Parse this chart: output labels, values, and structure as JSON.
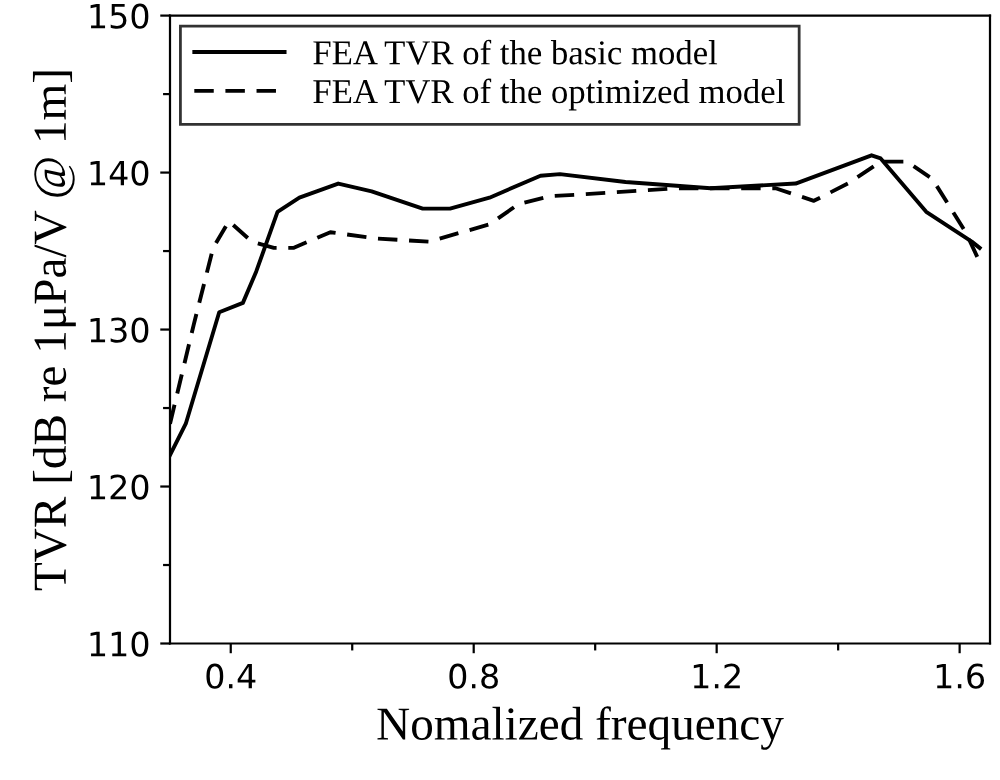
{
  "chart_data": {
    "type": "line",
    "xlabel": "Nomalized frequency",
    "ylabel": "TVR [dB re 1μPa/V @ 1m]",
    "xlim": [
      0.3,
      1.65
    ],
    "ylim": [
      110,
      150
    ],
    "xticks": [
      0.4,
      {
        "value": 0.6,
        "label": null
      },
      0.8,
      {
        "value": 1.0,
        "label": null
      },
      1.2,
      {
        "value": 1.4,
        "label": null
      },
      1.6
    ],
    "yticks": [
      110,
      {
        "value": 115,
        "label": null
      },
      120,
      {
        "value": 125,
        "label": null
      },
      130,
      {
        "value": 135,
        "label": null
      },
      140,
      {
        "value": 145,
        "label": null
      },
      150
    ],
    "legend": "top left",
    "grid": false,
    "series": [
      {
        "name": "FEA TVR of the basic model",
        "color": "#000000",
        "line_style": "solid",
        "x": [
          0.3,
          0.326,
          0.381,
          0.42,
          0.442,
          0.477,
          0.513,
          0.577,
          0.632,
          0.716,
          0.761,
          0.826,
          0.91,
          0.942,
          1.05,
          1.19,
          1.33,
          1.455,
          1.47,
          1.545,
          1.62,
          1.633
        ],
        "values": [
          122.0,
          124.0,
          131.1,
          131.7,
          133.7,
          137.5,
          138.4,
          139.3,
          138.8,
          137.7,
          137.7,
          138.4,
          139.8,
          139.9,
          139.4,
          139.0,
          139.3,
          141.1,
          140.9,
          137.5,
          135.6,
          135.2
        ]
      },
      {
        "name": "FEA TVR of the optimized model",
        "color": "#000000",
        "line_style": "dashed",
        "x": [
          0.3,
          0.339,
          0.371,
          0.397,
          0.435,
          0.471,
          0.503,
          0.564,
          0.639,
          0.726,
          0.826,
          0.874,
          0.926,
          0.974,
          1.135,
          1.297,
          1.36,
          1.416,
          1.47,
          1.513,
          1.555,
          1.61,
          1.633
        ],
        "values": [
          124.0,
          130.3,
          135.2,
          136.9,
          135.6,
          135.2,
          135.2,
          136.2,
          135.8,
          135.6,
          136.7,
          138.0,
          138.5,
          138.6,
          139.0,
          139.0,
          138.2,
          139.3,
          140.7,
          140.7,
          139.6,
          136.2,
          134.3
        ]
      }
    ]
  }
}
